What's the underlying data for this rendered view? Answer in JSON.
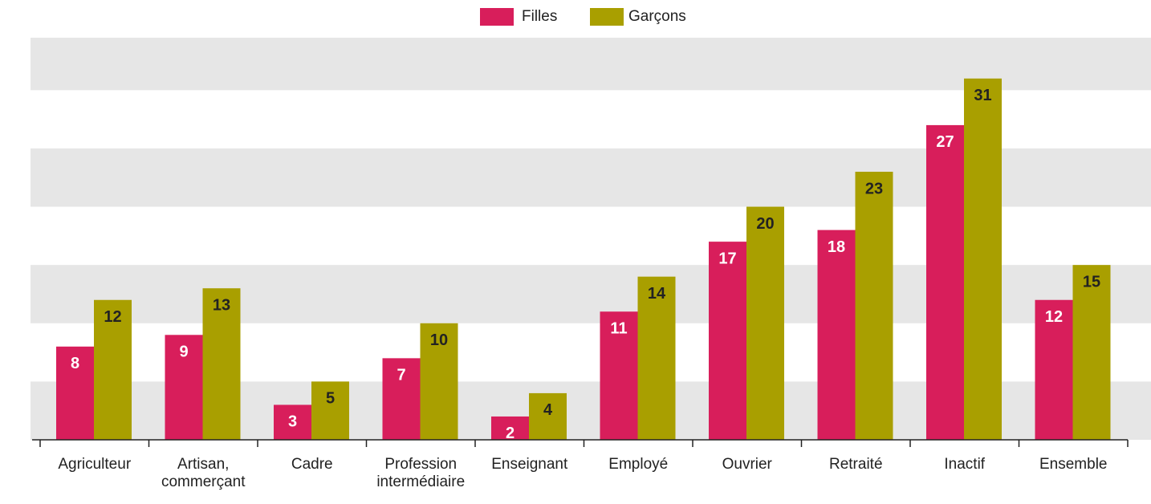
{
  "chart_data": {
    "type": "bar",
    "categories": [
      "Agriculteur",
      "Artisan, commerçant",
      "Cadre",
      "Profession intermédiaire",
      "Enseignant",
      "Employé",
      "Ouvrier",
      "Retraité",
      "Inactif",
      "Ensemble"
    ],
    "series": [
      {
        "name": "Filles",
        "color": "#d81e5b",
        "values": [
          8,
          9,
          3,
          7,
          2,
          11,
          17,
          18,
          27,
          12
        ]
      },
      {
        "name": "Garçons",
        "color": "#a99f00",
        "values": [
          12,
          13,
          5,
          10,
          4,
          14,
          20,
          23,
          31,
          15
        ]
      }
    ],
    "ylim": [
      0,
      34.5
    ],
    "yticks": [
      0,
      5,
      10,
      15,
      20,
      25,
      30
    ],
    "grid": true
  }
}
